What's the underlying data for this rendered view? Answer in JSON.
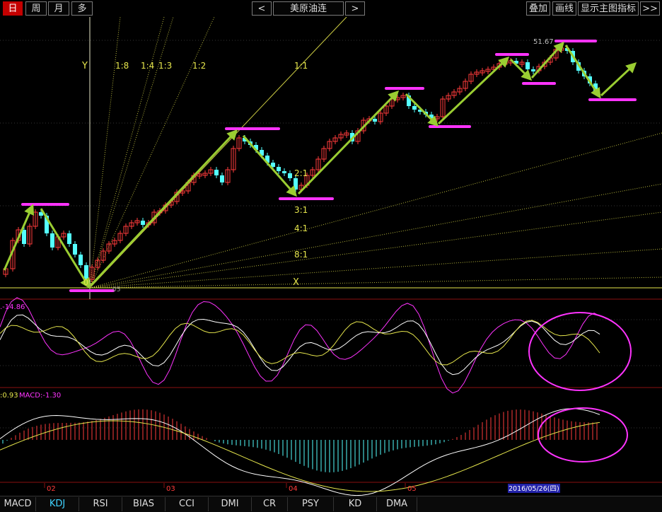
{
  "toolbar": {
    "period_day": "日",
    "period_week": "周",
    "period_month": "月",
    "period_multi": "多",
    "prev": "<",
    "symbol": "美原油连",
    "next": ">",
    "overlay": "叠加",
    "draw_line": "画线",
    "show_main_indicator": "显示主图指标",
    "expand": ">>"
  },
  "main_chart": {
    "price_label": "51.67",
    "low_label": "05",
    "origin_label": "0",
    "axis_y_label": "Y",
    "axis_x_label": "X",
    "gann_top_labels": [
      "1:8",
      "1:4",
      "1:3",
      "1:2",
      "1:1"
    ],
    "gann_right_labels": [
      "2:1",
      "3:1",
      "4:1",
      "8:1"
    ]
  },
  "kdj_panel": {
    "readout": ".-14.86"
  },
  "macd_panel": {
    "readout_a": ":0.93",
    "readout_b": "MACD:-1.30"
  },
  "x_axis": {
    "months": [
      "02",
      "03",
      "04",
      "05"
    ],
    "cursor_date": "2016/05/26(四)"
  },
  "tabs": [
    "MACD",
    "KDJ",
    "RSI",
    "BIAS",
    "CCI",
    "DMI",
    "CR",
    "PSY",
    "KD",
    "DMA"
  ],
  "active_tab": "KDJ",
  "colors": {
    "up": "#ff3b3b",
    "down": "#54ffff",
    "arrow": "#9acd32",
    "marker": "#ff33ff",
    "gann": "#e6e64c",
    "kdj_k": "#ffffff",
    "kdj_d": "#e6e64c",
    "kdj_j": "#ff33ff",
    "macd_dif": "#ffffff",
    "macd_dea": "#e6e64c",
    "cursor_date_bg": "#2222aa"
  }
}
